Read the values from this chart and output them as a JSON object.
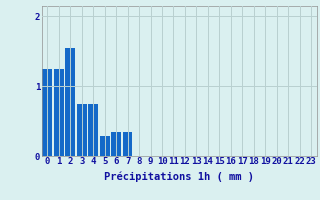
{
  "categories": [
    0,
    1,
    2,
    3,
    4,
    5,
    6,
    7,
    8,
    9,
    10,
    11,
    12,
    13,
    14,
    15,
    16,
    17,
    18,
    19,
    20,
    21,
    22,
    23
  ],
  "values": [
    1.25,
    1.25,
    1.55,
    0.75,
    0.75,
    0.28,
    0.35,
    0.35,
    0.0,
    0.0,
    0.0,
    0.0,
    0.0,
    0.0,
    0.0,
    0.0,
    0.0,
    0.0,
    0.0,
    0.0,
    0.0,
    0.0,
    0.0,
    0.0
  ],
  "bar_color": "#1469c8",
  "background_color": "#daf0f0",
  "grid_color": "#b8d0d0",
  "text_color": "#1010a0",
  "xlabel": "Précipitations 1h ( mm )",
  "yticks": [
    0,
    1,
    2
  ],
  "ylim": [
    0,
    2.15
  ],
  "xlim": [
    -0.5,
    23.5
  ],
  "xlabel_fontsize": 7.5,
  "tick_fontsize": 6.5
}
